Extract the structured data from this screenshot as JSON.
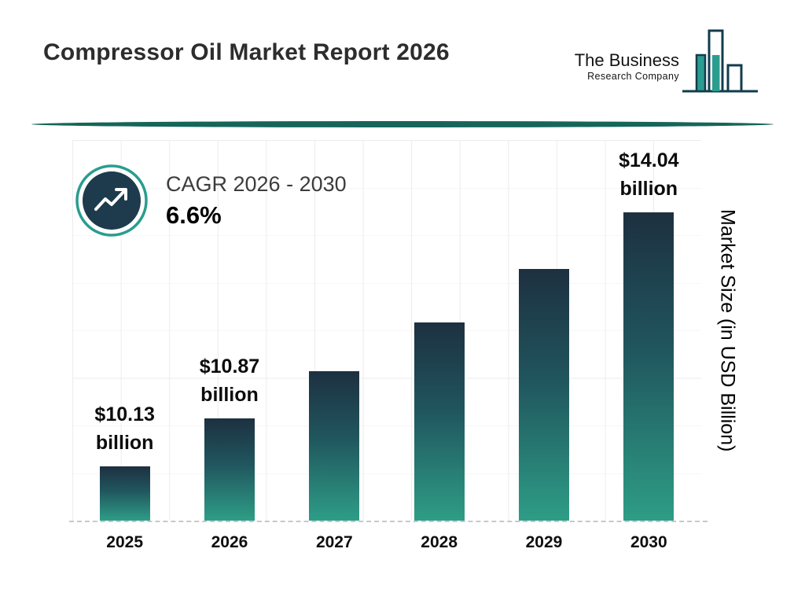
{
  "header": {
    "title": "Compressor Oil Market Report 2026",
    "logo": {
      "line1": "The Business",
      "line2": "Research Company"
    }
  },
  "cagr": {
    "label": "CAGR 2026 - 2030",
    "value": "6.6%"
  },
  "chart_data": {
    "type": "bar",
    "categories": [
      "2025",
      "2026",
      "2027",
      "2028",
      "2029",
      "2030"
    ],
    "values": [
      10.13,
      10.87,
      11.59,
      12.35,
      13.17,
      14.04
    ],
    "labels": [
      "$10.13\nbillion",
      "$10.87\nbillion",
      null,
      null,
      null,
      "$14.04\nbillion"
    ],
    "ylabel": "Market Size (in USD Billion)",
    "unit": "USD Billion",
    "ylim": [
      9.3,
      15.1
    ],
    "grid": true,
    "legend": false
  },
  "colors": {
    "accent_teal": "#2a9d8f",
    "dark_navy": "#1d3b4d",
    "bar_top": "#1d3040",
    "bar_mid": "#20565e",
    "bar_bottom": "#2e9d86",
    "divider": "#15655a"
  }
}
